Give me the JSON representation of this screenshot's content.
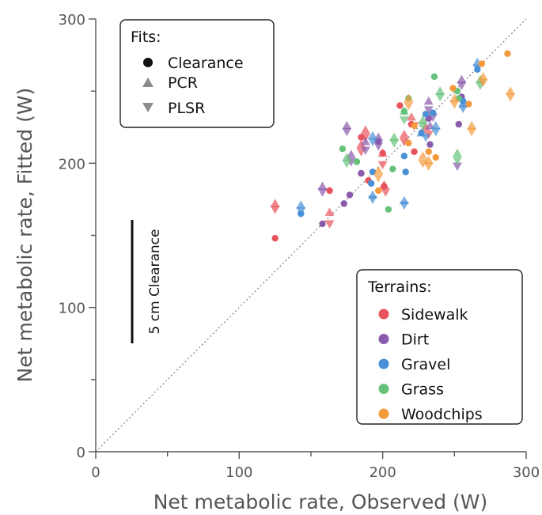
{
  "chart_data": {
    "type": "scatter",
    "xlabel": "Net metabolic rate, Observed (W)",
    "ylabel": "Net metabolic rate, Fitted (W)",
    "xlim": [
      0,
      300
    ],
    "ylim": [
      0,
      300
    ],
    "xticks": [
      "0",
      "100",
      "200",
      "300"
    ],
    "yticks": [
      "0",
      "100",
      "200",
      "300"
    ],
    "grid": false,
    "identity_line": true,
    "scale_bar": {
      "label": "5 cm Clearance"
    },
    "fits_legend": {
      "title": "Fits:",
      "placement": "top-left",
      "entries": [
        {
          "label": "Clearance",
          "marker": "circle"
        },
        {
          "label": "PCR",
          "marker": "triangle-up"
        },
        {
          "label": "PLSR",
          "marker": "triangle-down"
        }
      ]
    },
    "terrains_legend": {
      "title": "Terrains:",
      "placement": "bottom-right",
      "entries": [
        {
          "label": "Sidewalk",
          "color": "#e8525b"
        },
        {
          "label": "Dirt",
          "color": "#8a5aad"
        },
        {
          "label": "Gravel",
          "color": "#4a90d6"
        },
        {
          "label": "Grass",
          "color": "#66c27a"
        },
        {
          "label": "Woodchips",
          "color": "#f59a3c"
        }
      ]
    },
    "series": [
      {
        "terrain": "Sidewalk",
        "color": "#e8525b",
        "clearance": [
          [
            125,
            148
          ],
          [
            163,
            181
          ],
          [
            185,
            193
          ],
          [
            185,
            218
          ],
          [
            190,
            188
          ],
          [
            200,
            207
          ],
          [
            201,
            184
          ],
          [
            212,
            240
          ],
          [
            220,
            227
          ],
          [
            222,
            208
          ]
        ],
        "pcr": [
          [
            125,
            172
          ],
          [
            163,
            166
          ],
          [
            185,
            213
          ],
          [
            188,
            223
          ],
          [
            200,
            207
          ],
          [
            201,
            185
          ],
          [
            215,
            220
          ],
          [
            220,
            232
          ],
          [
            230,
            225
          ]
        ],
        "plsr": [
          [
            125,
            168
          ],
          [
            163,
            158
          ],
          [
            185,
            208
          ],
          [
            188,
            218
          ],
          [
            200,
            199
          ],
          [
            202,
            180
          ],
          [
            215,
            215
          ],
          [
            222,
            226
          ],
          [
            232,
            220
          ]
        ]
      },
      {
        "terrain": "Dirt",
        "color": "#8a5aad",
        "clearance": [
          [
            158,
            158
          ],
          [
            173,
            172
          ],
          [
            177,
            178
          ],
          [
            185,
            193
          ],
          [
            197,
            215
          ],
          [
            232,
            231
          ],
          [
            233,
            213
          ],
          [
            253,
            227
          ],
          [
            255,
            246
          ]
        ],
        "pcr": [
          [
            158,
            184
          ],
          [
            175,
            226
          ],
          [
            178,
            206
          ],
          [
            188,
            215
          ],
          [
            197,
            218
          ],
          [
            232,
            243
          ],
          [
            233,
            226
          ],
          [
            255,
            258
          ]
        ],
        "plsr": [
          [
            158,
            180
          ],
          [
            175,
            222
          ],
          [
            178,
            201
          ],
          [
            188,
            209
          ],
          [
            197,
            212
          ],
          [
            232,
            237
          ],
          [
            235,
            232
          ],
          [
            255,
            254
          ],
          [
            252,
            198
          ]
        ]
      },
      {
        "terrain": "Gravel",
        "color": "#4a90d6",
        "clearance": [
          [
            143,
            165
          ],
          [
            192,
            186
          ],
          [
            193,
            194
          ],
          [
            215,
            205
          ],
          [
            216,
            194
          ],
          [
            227,
            221
          ],
          [
            230,
            234
          ],
          [
            235,
            235
          ],
          [
            256,
            243
          ],
          [
            266,
            265
          ]
        ],
        "pcr": [
          [
            143,
            171
          ],
          [
            193,
            219
          ],
          [
            193,
            178
          ],
          [
            215,
            174
          ],
          [
            227,
            221
          ],
          [
            237,
            226
          ],
          [
            256,
            241
          ],
          [
            266,
            270
          ]
        ],
        "plsr": [
          [
            143,
            167
          ],
          [
            193,
            215
          ],
          [
            193,
            175
          ],
          [
            215,
            171
          ],
          [
            230,
            218
          ],
          [
            237,
            222
          ],
          [
            256,
            238
          ],
          [
            266,
            266
          ]
        ]
      },
      {
        "terrain": "Grass",
        "color": "#66c27a",
        "clearance": [
          [
            172,
            210
          ],
          [
            182,
            201
          ],
          [
            204,
            168
          ],
          [
            207,
            196
          ],
          [
            215,
            236
          ],
          [
            218,
            245
          ],
          [
            236,
            260
          ],
          [
            252,
            250
          ],
          [
            253,
            245
          ]
        ],
        "pcr": [
          [
            175,
            204
          ],
          [
            208,
            218
          ],
          [
            215,
            236
          ],
          [
            228,
            230
          ],
          [
            240,
            250
          ],
          [
            252,
            207
          ],
          [
            268,
            258
          ]
        ],
        "plsr": [
          [
            175,
            200
          ],
          [
            208,
            214
          ],
          [
            215,
            230
          ],
          [
            228,
            226
          ],
          [
            240,
            246
          ],
          [
            252,
            202
          ],
          [
            268,
            254
          ]
        ]
      },
      {
        "terrain": "Woodchips",
        "color": "#f59a3c",
        "clearance": [
          [
            197,
            181
          ],
          [
            218,
            214
          ],
          [
            222,
            226
          ],
          [
            232,
            208
          ],
          [
            237,
            204
          ],
          [
            249,
            252
          ],
          [
            260,
            241
          ],
          [
            269,
            269
          ],
          [
            287,
            276
          ]
        ],
        "pcr": [
          [
            197,
            195
          ],
          [
            218,
            245
          ],
          [
            228,
            205
          ],
          [
            232,
            202
          ],
          [
            250,
            245
          ],
          [
            262,
            226
          ],
          [
            270,
            260
          ],
          [
            289,
            250
          ]
        ],
        "plsr": [
          [
            197,
            190
          ],
          [
            218,
            240
          ],
          [
            228,
            200
          ],
          [
            232,
            198
          ],
          [
            250,
            241
          ],
          [
            262,
            222
          ],
          [
            270,
            256
          ],
          [
            289,
            246
          ]
        ]
      }
    ]
  }
}
